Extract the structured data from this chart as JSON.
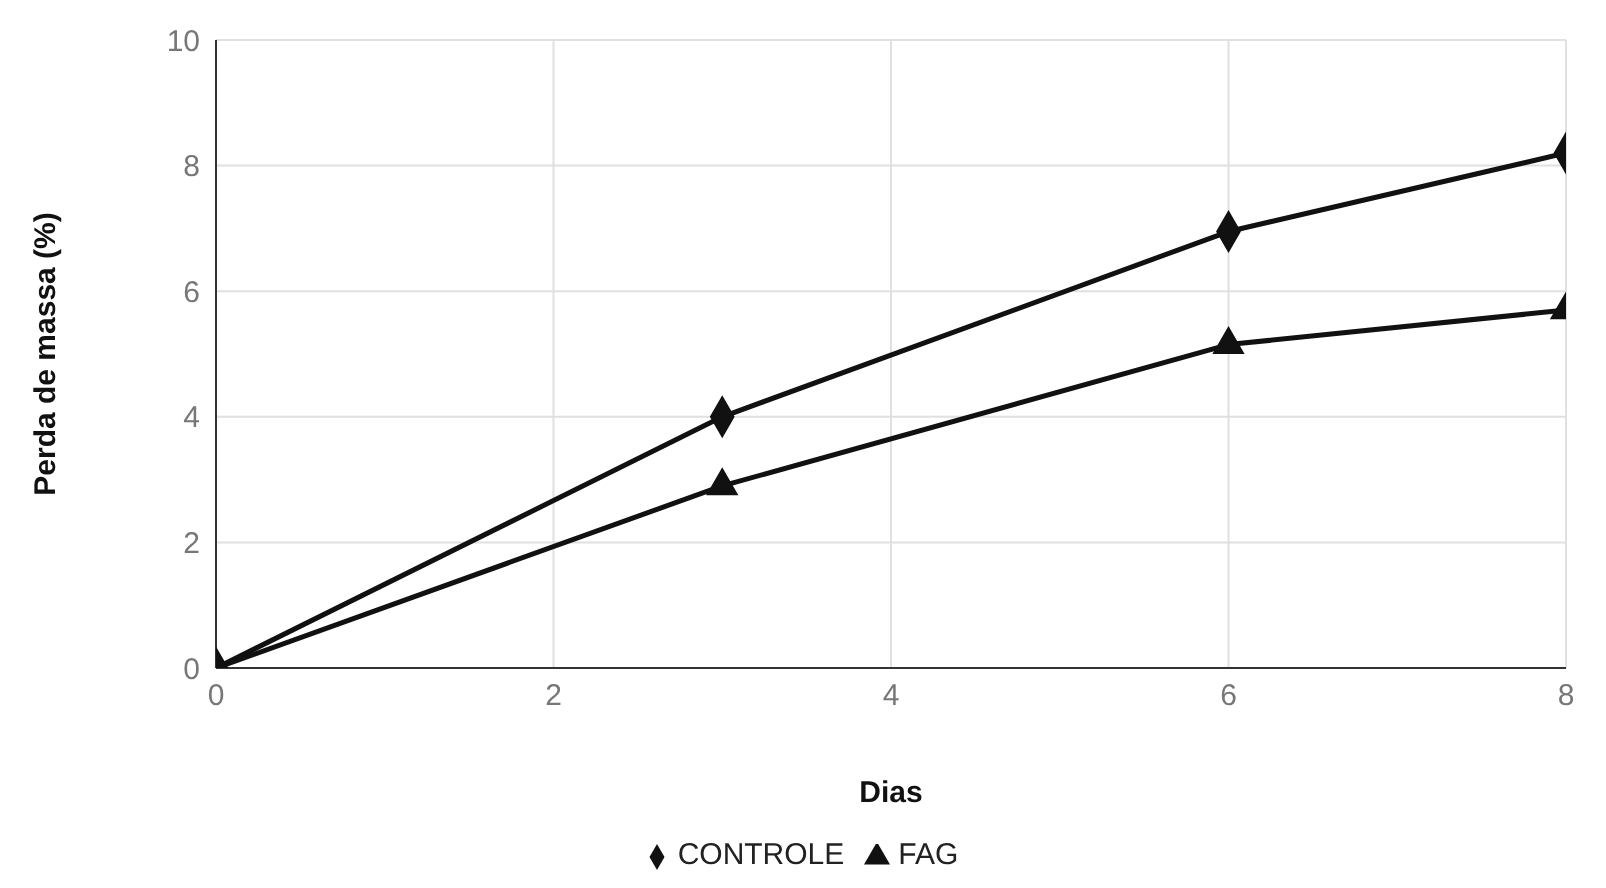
{
  "chart_data": {
    "type": "line",
    "xlabel": "Dias",
    "ylabel": "Perda de massa (%)",
    "xlim": [
      0,
      8
    ],
    "xticks": [
      0,
      2,
      4,
      6,
      8
    ],
    "ylim": [
      0,
      10
    ],
    "yticks": [
      0,
      2,
      4,
      6,
      8,
      10
    ],
    "grid": true,
    "legend": "bottom",
    "line_style": "solid",
    "series": [
      {
        "name": "CONTROLE",
        "color": "#111111",
        "marker": "diamond",
        "x": [
          0,
          3,
          6,
          8
        ],
        "values": [
          0,
          4.0,
          6.95,
          8.2
        ]
      },
      {
        "name": "FAG",
        "color": "#111111",
        "marker": "triangle",
        "x": [
          0,
          3,
          6,
          8
        ],
        "values": [
          0,
          2.9,
          5.15,
          5.7
        ]
      }
    ]
  }
}
